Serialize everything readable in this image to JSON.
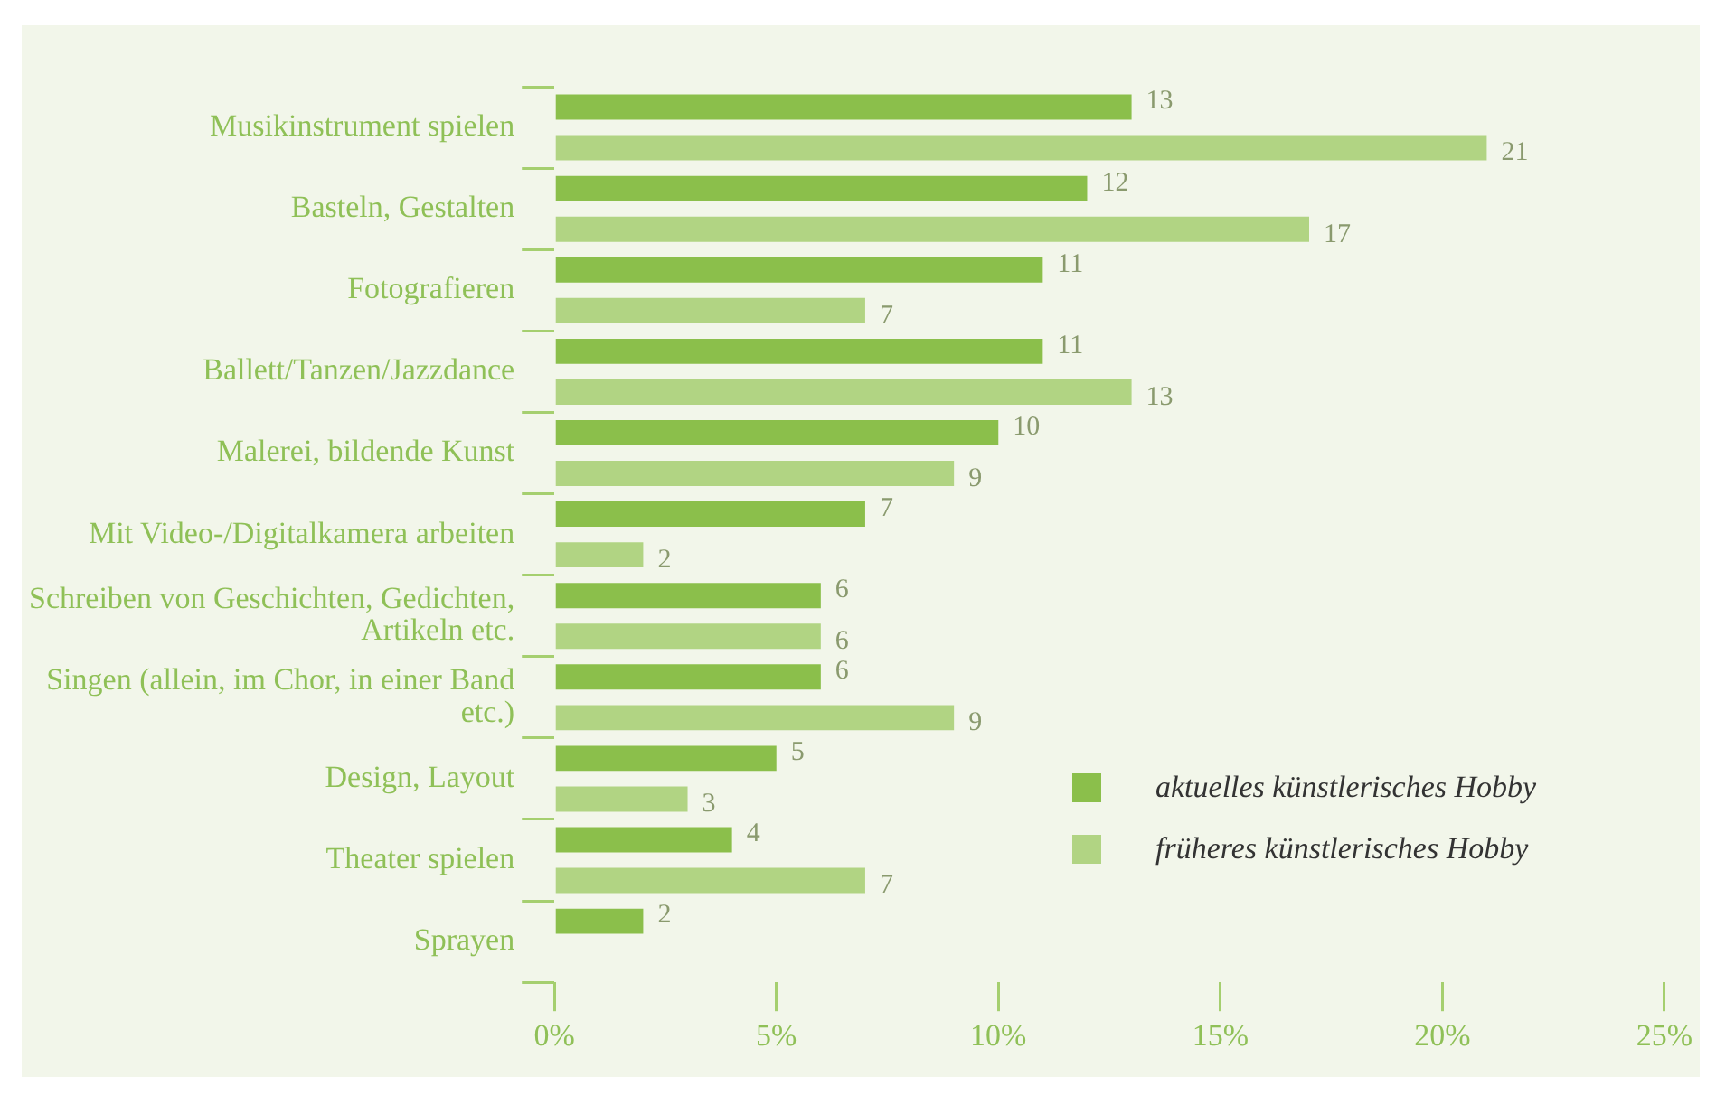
{
  "chart_data": {
    "type": "bar",
    "orientation": "horizontal",
    "categories": [
      "Musikinstrument spielen",
      "Basteln, Gestalten",
      "Fotografieren",
      "Ballett/Tanzen/Jazzdance",
      "Malerei, bildende Kunst",
      "Mit Video-/Digitalkamera arbeiten",
      "Schreiben von Geschichten, Gedichten, Artikeln etc.",
      "Singen (allein, im Chor, in einer Band etc.)",
      "Design, Layout",
      "Theater spielen",
      "Sprayen"
    ],
    "series": [
      {
        "name": "aktuelles künstlerisches Hobby",
        "color": "#8bbf4b",
        "values": [
          13,
          12,
          11,
          11,
          10,
          7,
          6,
          6,
          5,
          4,
          2
        ]
      },
      {
        "name": "früheres künstlerisches Hobby",
        "color": "#b1d483",
        "values": [
          21,
          17,
          7,
          13,
          9,
          2,
          6,
          9,
          3,
          7,
          null
        ]
      }
    ],
    "xlim": [
      0,
      25
    ],
    "xticks": [
      {
        "value": 0,
        "label": "0%"
      },
      {
        "value": 5,
        "label": "5%"
      },
      {
        "value": 10,
        "label": "10%"
      },
      {
        "value": 15,
        "label": "15%"
      },
      {
        "value": 20,
        "label": "20%"
      },
      {
        "value": 25,
        "label": "25%"
      }
    ],
    "data_labels": true,
    "grid": false,
    "legend": "bottom right"
  }
}
